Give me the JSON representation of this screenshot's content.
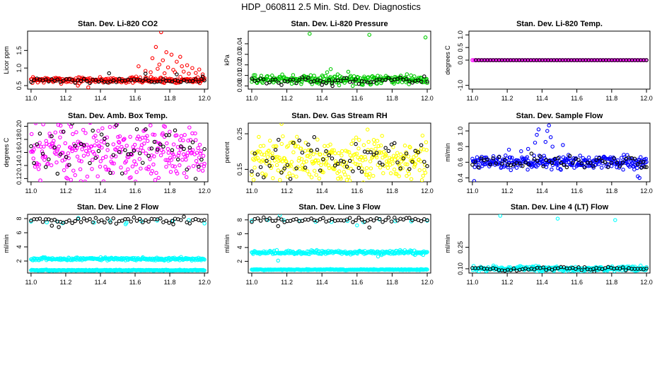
{
  "figure_title": "HDP_060811  2.5 Min. Std. Dev. Diagnostics",
  "colors": {
    "black": "#000000",
    "red": "#ff0000",
    "green": "#00cc00",
    "magenta": "#ff00ff",
    "yellow": "#ffff00",
    "blue": "#0000ff",
    "cyan": "#00ffff"
  },
  "chart_data": [
    {
      "type": "scatter",
      "id": "co2",
      "title": "Stan. Dev. Li-820 CO2",
      "ylabel": "Licor ppm",
      "xlabel": "",
      "xlim": [
        10.98,
        12.02
      ],
      "ylim": [
        0.4,
        2.05
      ],
      "xticks": [
        11.0,
        11.2,
        11.4,
        11.6,
        11.8,
        12.0
      ],
      "xtick_labels": [
        "11.0",
        "11.2",
        "11.4",
        "11.6",
        "11.8",
        "12.0"
      ],
      "yticks": [
        0.5,
        1.0,
        1.5
      ],
      "ytick_labels": [
        "0.5",
        "1.0",
        "1.5"
      ],
      "series": [
        {
          "name": "main",
          "color": "red",
          "n": 260,
          "x": [
            11.0,
            12.0
          ],
          "base": 0.66,
          "noise": 0.06,
          "spikes": [
            [
              11.62,
              1.05
            ],
            [
              11.66,
              0.92
            ],
            [
              11.7,
              1.28
            ],
            [
              11.72,
              1.6
            ],
            [
              11.73,
              0.98
            ],
            [
              11.75,
              2.02
            ],
            [
              11.76,
              1.22
            ],
            [
              11.78,
              1.45
            ],
            [
              11.79,
              1.02
            ],
            [
              11.81,
              1.38
            ],
            [
              11.82,
              0.95
            ],
            [
              11.84,
              1.18
            ],
            [
              11.86,
              1.32
            ],
            [
              11.88,
              0.9
            ],
            [
              11.9,
              1.08
            ],
            [
              11.93,
              1.0
            ],
            [
              11.95,
              0.86
            ],
            [
              11.97,
              0.96
            ],
            [
              11.99,
              0.82
            ],
            [
              11.69,
              0.88
            ],
            [
              11.74,
              1.1
            ],
            [
              11.77,
              0.85
            ],
            [
              11.83,
              0.88
            ],
            [
              11.87,
              1.05
            ],
            [
              11.91,
              0.84
            ],
            [
              11.33,
              0.45
            ],
            [
              11.27,
              0.5
            ]
          ]
        },
        {
          "name": "reference",
          "color": "black",
          "n": 60,
          "x": [
            11.0,
            12.0
          ],
          "base": 0.64,
          "noise": 0.04,
          "spikes": [
            [
              11.45,
              0.85
            ],
            [
              11.66,
              0.84
            ],
            [
              11.84,
              0.82
            ],
            [
              11.99,
              0.76
            ]
          ]
        }
      ]
    },
    {
      "type": "scatter",
      "id": "pressure",
      "title": "Stan. Dev. Li-820 Pressure",
      "ylabel": "kPa",
      "xlabel": "",
      "xlim": [
        10.98,
        12.02
      ],
      "ylim": [
        -0.003,
        0.052
      ],
      "xticks": [
        11.0,
        11.2,
        11.4,
        11.6,
        11.8,
        12.0
      ],
      "xtick_labels": [
        "11.0",
        "11.2",
        "11.4",
        "11.6",
        "11.8",
        "12.0"
      ],
      "yticks": [
        0.0,
        0.01,
        0.02,
        0.03,
        0.04
      ],
      "ytick_labels": [
        "0.00",
        "0.01",
        "0.02",
        "0.03",
        "0.04"
      ],
      "series": [
        {
          "name": "main",
          "color": "green",
          "n": 260,
          "x": [
            11.0,
            12.0
          ],
          "base": 0.006,
          "noise": 0.003,
          "spikes": [
            [
              11.33,
              0.0495
            ],
            [
              11.67,
              0.0485
            ],
            [
              11.99,
              0.046
            ],
            [
              11.45,
              0.016
            ],
            [
              11.43,
              0.013
            ],
            [
              11.55,
              0.0135
            ],
            [
              11.49,
              0.011
            ]
          ]
        },
        {
          "name": "reference",
          "color": "black",
          "n": 60,
          "x": [
            11.0,
            12.0
          ],
          "base": 0.005,
          "noise": 0.0025,
          "spikes": [
            [
              11.4,
              0.001
            ],
            [
              11.46,
              0.0
            ]
          ]
        }
      ]
    },
    {
      "type": "scatter",
      "id": "temp",
      "title": "Stan. Dev. Li-820 Temp.",
      "ylabel": "degrees C",
      "xlabel": "",
      "xlim": [
        10.98,
        12.02
      ],
      "ylim": [
        -1.15,
        1.15
      ],
      "xticks": [
        11.0,
        11.2,
        11.4,
        11.6,
        11.8,
        12.0
      ],
      "xtick_labels": [
        "11.0",
        "11.2",
        "11.4",
        "11.6",
        "11.8",
        "12.0"
      ],
      "yticks": [
        -1.0,
        0.0,
        0.5,
        1.0
      ],
      "ytick_labels": [
        "-1.0",
        "0.0",
        "0.5",
        "1.0"
      ],
      "series": [
        {
          "name": "main",
          "color": "magenta",
          "n": 140,
          "x": [
            11.0,
            12.0
          ],
          "base": 0.0,
          "noise": 0.0,
          "spikes": []
        },
        {
          "name": "reference",
          "color": "black",
          "n": 60,
          "x": [
            11.02,
            12.0
          ],
          "base": 0.0,
          "noise": 0.0,
          "spikes": []
        }
      ]
    },
    {
      "type": "scatter",
      "id": "boxtemp",
      "title": "Stan. Dev. Amb. Box Temp.",
      "ylabel": "degrees C",
      "xlabel": "",
      "xlim": [
        10.98,
        12.02
      ],
      "ylim": [
        0.115,
        0.205
      ],
      "xticks": [
        11.0,
        11.2,
        11.4,
        11.6,
        11.8,
        12.0
      ],
      "xtick_labels": [
        "11.0",
        "11.2",
        "11.4",
        "11.6",
        "11.8",
        "12.0"
      ],
      "yticks": [
        0.12,
        0.14,
        0.16,
        0.18,
        0.2
      ],
      "ytick_labels": [
        "0.12",
        "0.14",
        "0.16",
        "0.18",
        "0.20"
      ],
      "series": [
        {
          "name": "main",
          "color": "magenta",
          "n": 300,
          "x": [
            11.0,
            12.0
          ],
          "base": 0.16,
          "noise": 0.032,
          "spikes": [
            [
              11.23,
              0.118
            ],
            [
              11.21,
              0.12
            ],
            [
              11.07,
              0.203
            ]
          ]
        },
        {
          "name": "reference",
          "color": "black",
          "n": 60,
          "x": [
            11.0,
            12.0
          ],
          "base": 0.165,
          "noise": 0.03,
          "spikes": []
        }
      ]
    },
    {
      "type": "scatter",
      "id": "rh",
      "title": "Stan. Dev. Gas Stream RH",
      "ylabel": "percent",
      "xlabel": "",
      "xlim": [
        10.98,
        12.02
      ],
      "ylim": [
        0.115,
        0.28
      ],
      "xticks": [
        11.0,
        11.2,
        11.4,
        11.6,
        11.8,
        12.0
      ],
      "xtick_labels": [
        "11.0",
        "11.2",
        "11.4",
        "11.6",
        "11.8",
        "12.0"
      ],
      "yticks": [
        0.15,
        0.25
      ],
      "ytick_labels": [
        "0.15",
        "0.25"
      ],
      "series": [
        {
          "name": "main",
          "color": "yellow",
          "n": 300,
          "x": [
            11.0,
            12.0
          ],
          "base": 0.175,
          "noise": 0.04,
          "spikes": [
            [
              11.17,
              0.278
            ],
            [
              11.66,
              0.262
            ]
          ]
        },
        {
          "name": "reference",
          "color": "black",
          "n": 60,
          "x": [
            11.0,
            12.0
          ],
          "base": 0.18,
          "noise": 0.04,
          "spikes": []
        }
      ]
    },
    {
      "type": "scatter",
      "id": "sampleflow",
      "title": "Stan. Dev. Sample Flow",
      "ylabel": "ml/min",
      "xlabel": "",
      "xlim": [
        10.98,
        12.02
      ],
      "ylim": [
        0.35,
        1.1
      ],
      "xticks": [
        11.0,
        11.2,
        11.4,
        11.6,
        11.8,
        12.0
      ],
      "xtick_labels": [
        "11.0",
        "11.2",
        "11.4",
        "11.6",
        "11.8",
        "12.0"
      ],
      "yticks": [
        0.4,
        0.6,
        0.8,
        1.0
      ],
      "ytick_labels": [
        "0.4",
        "0.6",
        "0.8",
        "1.0"
      ],
      "series": [
        {
          "name": "main",
          "color": "blue",
          "n": 300,
          "x": [
            11.0,
            12.0
          ],
          "base": 0.6,
          "noise": 0.06,
          "spikes": [
            [
              11.44,
              1.07
            ],
            [
              11.43,
              1.0
            ],
            [
              11.45,
              0.92
            ],
            [
              11.38,
              1.02
            ],
            [
              11.37,
              0.95
            ],
            [
              11.36,
              0.85
            ],
            [
              11.42,
              0.86
            ],
            [
              11.46,
              0.8
            ],
            [
              11.52,
              0.82
            ],
            [
              11.01,
              0.36
            ],
            [
              11.95,
              0.42
            ],
            [
              11.96,
              0.4
            ],
            [
              11.28,
              0.74
            ],
            [
              11.21,
              0.76
            ],
            [
              11.32,
              0.77
            ]
          ]
        },
        {
          "name": "reference",
          "color": "black",
          "n": 60,
          "x": [
            11.0,
            12.0
          ],
          "base": 0.6,
          "noise": 0.06,
          "spikes": [
            [
              11.99,
              0.54
            ],
            [
              11.97,
              0.53
            ]
          ]
        }
      ]
    },
    {
      "type": "scatter",
      "id": "line2",
      "title": "Stan. Dev. Line 2 Flow",
      "ylabel": "ml/min",
      "xlabel": "",
      "xlim": [
        10.98,
        12.02
      ],
      "ylim": [
        0.3,
        8.6
      ],
      "xticks": [
        11.0,
        11.2,
        11.4,
        11.6,
        11.8,
        12.0
      ],
      "xtick_labels": [
        "11.0",
        "11.2",
        "11.4",
        "11.6",
        "11.8",
        "12.0"
      ],
      "yticks": [
        2,
        4,
        6,
        8
      ],
      "ytick_labels": [
        "2",
        "4",
        "6",
        "8"
      ],
      "series": [
        {
          "name": "band-high",
          "color": "cyan",
          "n": 260,
          "x": [
            11.0,
            12.0
          ],
          "base": 2.3,
          "noise": 0.15,
          "spikes": []
        },
        {
          "name": "band-low",
          "color": "cyan",
          "n": 260,
          "x": [
            11.0,
            12.0
          ],
          "base": 0.7,
          "noise": 0.05,
          "spikes": []
        },
        {
          "name": "sparse",
          "color": "cyan",
          "n": 12,
          "x": [
            11.0,
            12.0
          ],
          "base": 7.6,
          "noise": 0.3,
          "spikes": [
            [
              11.15,
              7.6
            ],
            [
              11.55,
              7.4
            ]
          ]
        },
        {
          "name": "reference",
          "color": "black",
          "n": 60,
          "x": [
            11.0,
            12.0
          ],
          "base": 7.7,
          "noise": 0.3,
          "spikes": [
            [
              11.16,
              6.8
            ],
            [
              11.12,
              7.0
            ],
            [
              11.82,
              7.2
            ]
          ]
        }
      ]
    },
    {
      "type": "scatter",
      "id": "line3",
      "title": "Stan. Dev. Line 3 Flow",
      "ylabel": "ml/min",
      "xlabel": "",
      "xlim": [
        10.98,
        12.02
      ],
      "ylim": [
        0.3,
        8.8
      ],
      "xticks": [
        11.0,
        11.2,
        11.4,
        11.6,
        11.8,
        12.0
      ],
      "xtick_labels": [
        "11.0",
        "11.2",
        "11.4",
        "11.6",
        "11.8",
        "12.0"
      ],
      "yticks": [
        2,
        4,
        6,
        8
      ],
      "ytick_labels": [
        "2",
        "4",
        "6",
        "8"
      ],
      "series": [
        {
          "name": "band-high",
          "color": "cyan",
          "n": 260,
          "x": [
            11.0,
            12.0
          ],
          "base": 3.3,
          "noise": 0.2,
          "spikes": [
            [
              11.15,
              2.1
            ],
            [
              11.72,
              2.7
            ],
            [
              11.74,
              2.9
            ]
          ]
        },
        {
          "name": "band-low",
          "color": "cyan",
          "n": 260,
          "x": [
            11.0,
            12.0
          ],
          "base": 0.8,
          "noise": 0.05,
          "spikes": []
        },
        {
          "name": "sparse",
          "color": "cyan",
          "n": 12,
          "x": [
            11.0,
            12.0
          ],
          "base": 7.8,
          "noise": 0.3,
          "spikes": [
            [
              11.16,
              8.7
            ],
            [
              11.6,
              7.2
            ]
          ]
        },
        {
          "name": "reference",
          "color": "black",
          "n": 60,
          "x": [
            11.0,
            12.0
          ],
          "base": 8.0,
          "noise": 0.3,
          "spikes": [
            [
              11.67,
              6.9
            ],
            [
              11.15,
              7.1
            ]
          ]
        }
      ]
    },
    {
      "type": "scatter",
      "id": "line4",
      "title": "Stan. Dev. Line 4 (LT) Flow",
      "ylabel": "ml/min",
      "xlabel": "",
      "xlim": [
        10.98,
        12.02
      ],
      "ylim": [
        0.07,
        0.48
      ],
      "xticks": [
        11.0,
        11.2,
        11.4,
        11.6,
        11.8,
        12.0
      ],
      "xtick_labels": [
        "11.0",
        "11.2",
        "11.4",
        "11.6",
        "11.8",
        "12.0"
      ],
      "yticks": [
        0.1,
        0.25
      ],
      "ytick_labels": [
        "0.10",
        "0.25"
      ],
      "series": [
        {
          "name": "main",
          "color": "cyan",
          "n": 300,
          "x": [
            11.0,
            12.0
          ],
          "base": 0.1,
          "noise": 0.012,
          "spikes": [
            [
              11.16,
              0.47
            ],
            [
              11.49,
              0.45
            ],
            [
              11.82,
              0.44
            ]
          ]
        },
        {
          "name": "reference",
          "color": "black",
          "n": 60,
          "x": [
            11.0,
            12.0
          ],
          "base": 0.1,
          "noise": 0.01,
          "spikes": [
            [
              11.7,
              0.08
            ]
          ]
        }
      ]
    }
  ]
}
